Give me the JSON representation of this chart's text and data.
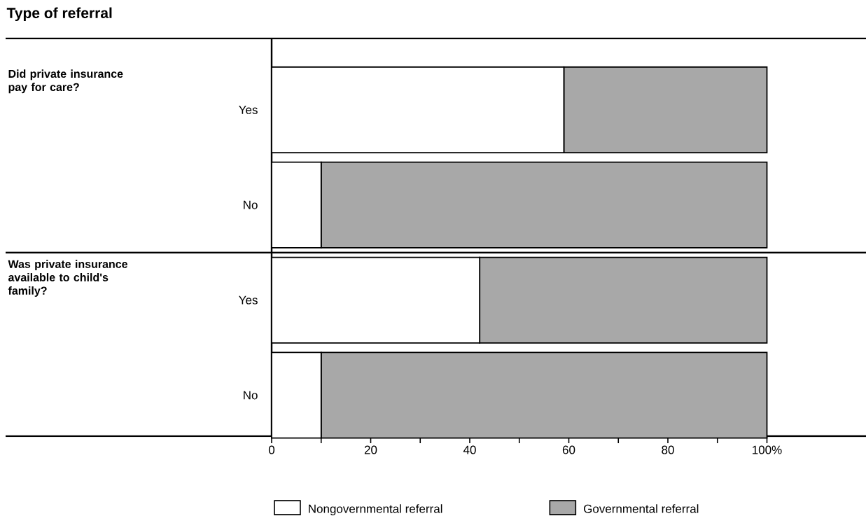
{
  "chart_data": {
    "type": "bar",
    "orientation": "horizontal",
    "stacked": true,
    "title": "Type of referral",
    "categories": [
      "Yes",
      "No",
      "Yes",
      "No"
    ],
    "series": [
      {
        "name": "Nongovernmental referral",
        "color": "#ffffff",
        "values": [
          59,
          10,
          42,
          10
        ]
      },
      {
        "name": "Governmental referral",
        "color": "#a8a8a8",
        "values": [
          41,
          90,
          58,
          90
        ]
      }
    ],
    "xlim": [
      0,
      120
    ],
    "xticks": [
      0,
      {
        "value": 10,
        "label": null
      },
      20,
      {
        "value": 30,
        "label": null
      },
      40,
      {
        "value": 50,
        "label": null
      },
      60,
      {
        "value": 70,
        "label": null
      },
      80,
      {
        "value": 90,
        "label": null
      },
      {
        "value": 100,
        "label": "100%"
      }
    ],
    "annotations": [
      "Did private insurance pay for care?",
      "Was private insurance available to child's family?"
    ],
    "legend": "bottom"
  }
}
